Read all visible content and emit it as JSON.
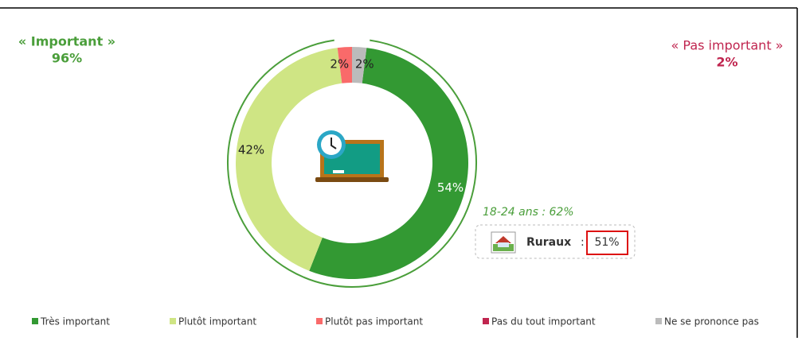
{
  "chart_data": {
    "type": "donut",
    "categories": [
      "Très important",
      "Plutôt important",
      "Plutôt pas important",
      "Pas du tout important",
      "Ne se prononce pas"
    ],
    "values": [
      54,
      42,
      2,
      0,
      2
    ],
    "value_labels": [
      "54%",
      "42%",
      "2%",
      null,
      "2%"
    ],
    "colors": [
      "#339933",
      "#cfe584",
      "#f96a6a",
      "#c0254f",
      "#bbbbbb"
    ],
    "label_colors": [
      "#ffffff",
      "#222222",
      "#222222",
      "#222222",
      "#222222"
    ],
    "legend": "bottom",
    "annotations": {
      "important": {
        "title": "« Important »",
        "value": "96%",
        "color": "#4a9e3a"
      },
      "pas_important": {
        "title": "« Pas important »",
        "value": "2%",
        "color": "#c0254f"
      },
      "age": {
        "text": "18-24 ans : 62%",
        "color": "#4a9e3a"
      },
      "ruraux": {
        "label": "Ruraux",
        "separator": ":",
        "value": "51%"
      }
    }
  }
}
